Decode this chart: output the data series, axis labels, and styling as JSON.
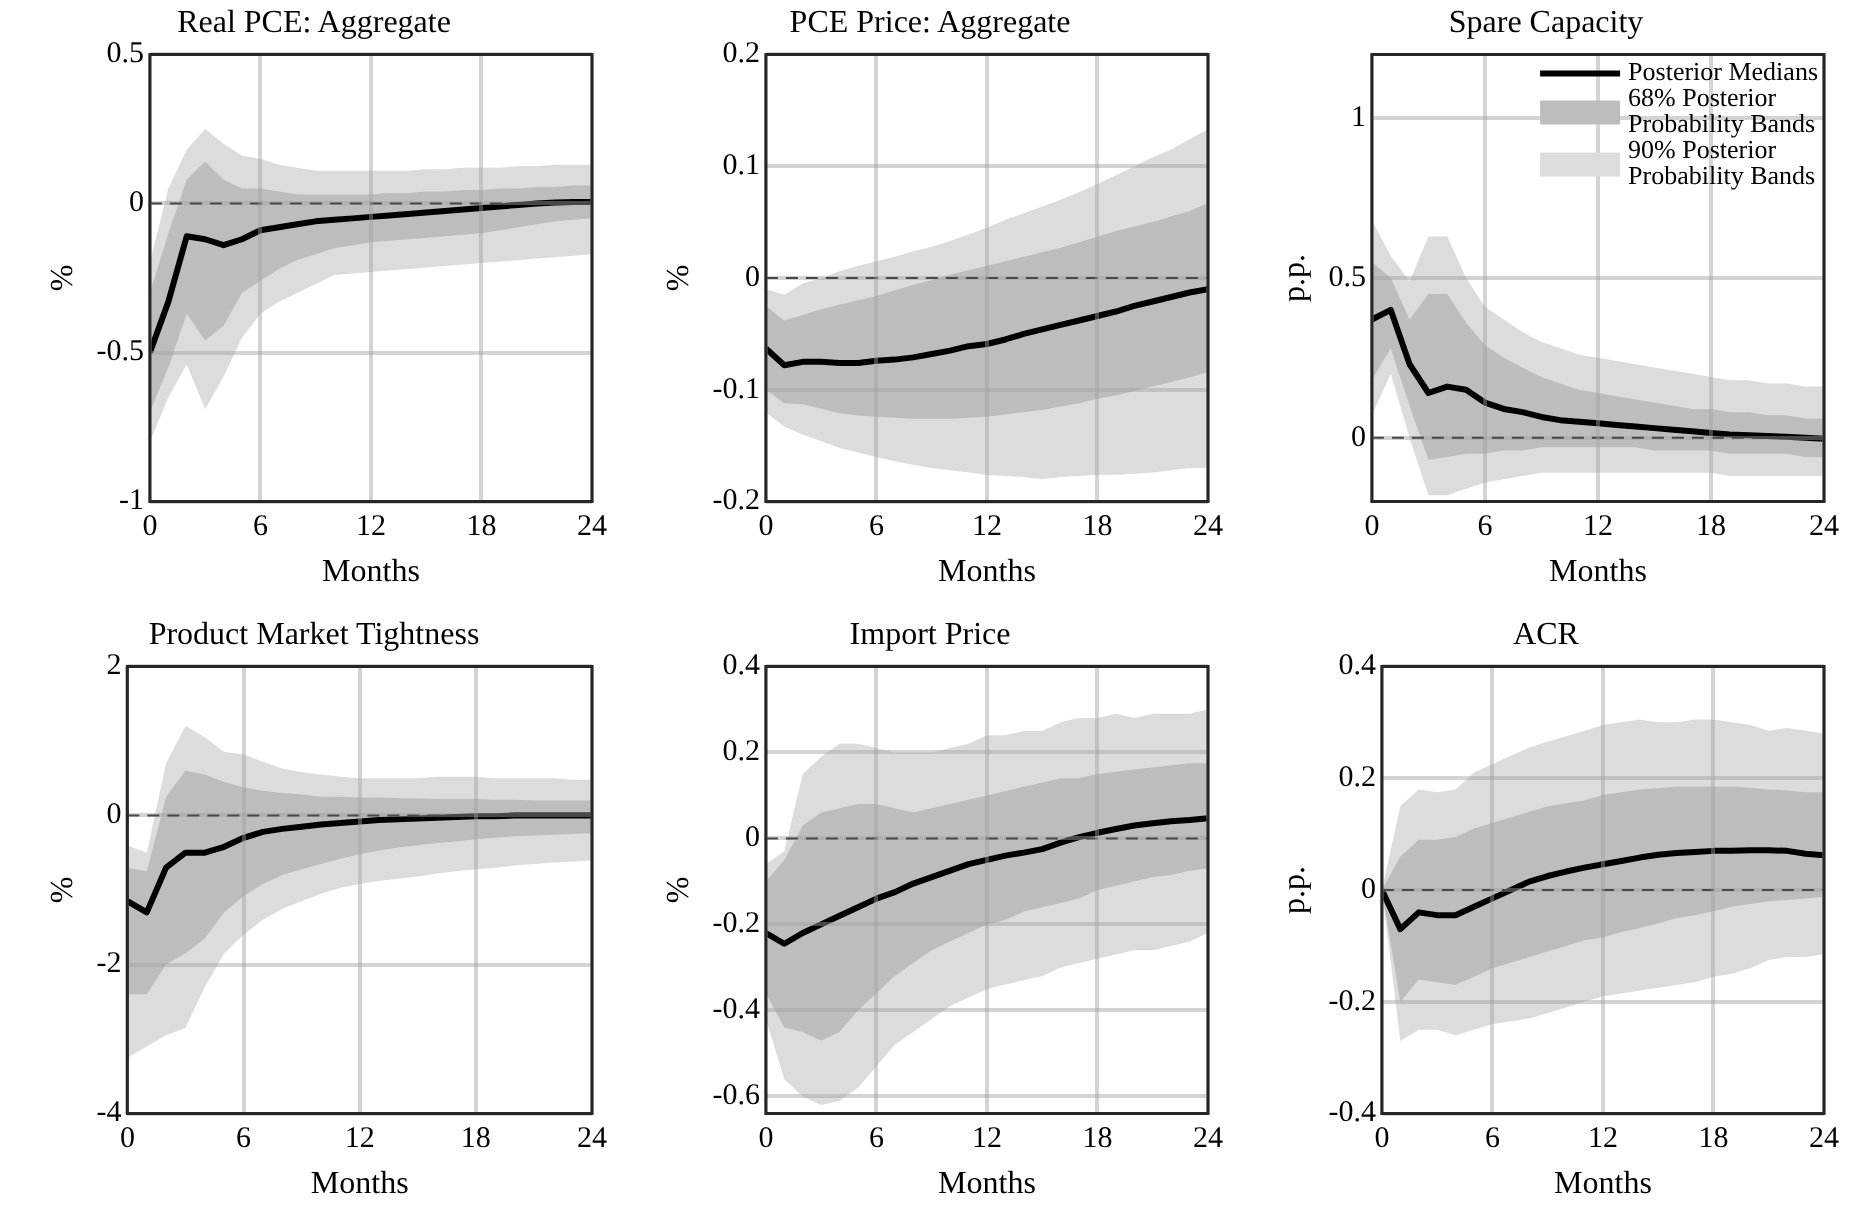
{
  "chart_data": [
    {
      "type": "line",
      "title": "Real PCE: Aggregate",
      "xlabel": "Months",
      "ylabel": "%",
      "x": [
        0,
        1,
        2,
        3,
        4,
        5,
        6,
        7,
        8,
        9,
        10,
        11,
        12,
        13,
        14,
        15,
        16,
        17,
        18,
        19,
        20,
        21,
        22,
        23,
        24
      ],
      "xlim": [
        0,
        24
      ],
      "xticks": [
        0,
        6,
        12,
        18,
        24
      ],
      "ylim": [
        -1,
        0.5
      ],
      "yticks": [
        -1,
        -0.5,
        0,
        0.5
      ],
      "grid": true,
      "ref_lines": [
        {
          "axis": "y",
          "value": 0,
          "line_style": "dashed",
          "color": "#000000"
        }
      ],
      "series": [
        {
          "type": "line",
          "color": "#dcdcdc",
          "values": [
            null,
            null,
            null,
            null,
            null,
            null,
            null,
            null,
            null,
            null,
            null,
            null,
            null,
            null,
            null,
            null,
            null,
            null,
            null,
            null,
            null,
            null,
            null,
            null,
            null
          ],
          "lower": [
            -0.8,
            -0.65,
            -0.54,
            -0.69,
            -0.58,
            -0.45,
            -0.37,
            -0.33,
            -0.3,
            -0.27,
            -0.24,
            -0.235,
            -0.23,
            -0.225,
            -0.22,
            -0.215,
            -0.21,
            -0.205,
            -0.2,
            -0.195,
            -0.19,
            -0.185,
            -0.18,
            -0.175,
            -0.17
          ],
          "upper": [
            -0.2,
            0.05,
            0.18,
            0.25,
            0.2,
            0.16,
            0.15,
            0.13,
            0.12,
            0.11,
            0.11,
            0.11,
            0.11,
            0.11,
            0.11,
            0.115,
            0.115,
            0.12,
            0.12,
            0.12,
            0.125,
            0.125,
            0.13,
            0.13,
            0.13
          ]
        },
        {
          "type": "line",
          "color": "#bdbdbd",
          "values": [
            null,
            null,
            null,
            null,
            null,
            null,
            null,
            null,
            null,
            null,
            null,
            null,
            null,
            null,
            null,
            null,
            null,
            null,
            null,
            null,
            null,
            null,
            null,
            null,
            null
          ],
          "lower": [
            -0.7,
            -0.55,
            -0.37,
            -0.46,
            -0.41,
            -0.3,
            -0.26,
            -0.22,
            -0.19,
            -0.17,
            -0.15,
            -0.14,
            -0.13,
            -0.125,
            -0.12,
            -0.115,
            -0.11,
            -0.105,
            -0.1,
            -0.09,
            -0.08,
            -0.07,
            -0.06,
            -0.055,
            -0.05
          ],
          "upper": [
            -0.3,
            -0.1,
            0.08,
            0.14,
            0.08,
            0.05,
            0.05,
            0.04,
            0.03,
            0.03,
            0.03,
            0.03,
            0.03,
            0.035,
            0.035,
            0.04,
            0.04,
            0.045,
            0.045,
            0.05,
            0.05,
            0.055,
            0.055,
            0.06,
            0.06
          ]
        },
        {
          "type": "line",
          "color": "#000000",
          "values": [
            -0.5,
            -0.33,
            -0.11,
            -0.12,
            -0.14,
            -0.12,
            -0.09,
            -0.08,
            -0.07,
            -0.06,
            -0.055,
            -0.05,
            -0.045,
            -0.04,
            -0.035,
            -0.03,
            -0.025,
            -0.02,
            -0.015,
            -0.01,
            -0.005,
            0,
            0.003,
            0.005,
            0.005
          ]
        }
      ]
    },
    {
      "type": "line",
      "title": "PCE Price: Aggregate",
      "xlabel": "Months",
      "ylabel": "%",
      "x": [
        0,
        1,
        2,
        3,
        4,
        5,
        6,
        7,
        8,
        9,
        10,
        11,
        12,
        13,
        14,
        15,
        16,
        17,
        18,
        19,
        20,
        21,
        22,
        23,
        24
      ],
      "xlim": [
        0,
        24
      ],
      "xticks": [
        0,
        6,
        12,
        18,
        24
      ],
      "ylim": [
        -0.2,
        0.2
      ],
      "yticks": [
        -0.2,
        -0.1,
        0,
        0.1,
        0.2
      ],
      "grid": true,
      "ref_lines": [
        {
          "axis": "y",
          "value": 0,
          "line_style": "dashed",
          "color": "#000000"
        }
      ],
      "series": [
        {
          "type": "line",
          "color": "#dcdcdc",
          "values": [
            null,
            null,
            null,
            null,
            null,
            null,
            null,
            null,
            null,
            null,
            null,
            null,
            null,
            null,
            null,
            null,
            null,
            null,
            null,
            null,
            null,
            null,
            null,
            null,
            null
          ],
          "lower": [
            -0.12,
            -0.133,
            -0.14,
            -0.146,
            -0.152,
            -0.156,
            -0.16,
            -0.164,
            -0.167,
            -0.17,
            -0.172,
            -0.174,
            -0.176,
            -0.177,
            -0.178,
            -0.18,
            -0.178,
            -0.177,
            -0.176,
            -0.176,
            -0.175,
            -0.174,
            -0.172,
            -0.17,
            -0.17
          ],
          "upper": [
            -0.01,
            -0.015,
            -0.005,
            0,
            0.006,
            0.011,
            0.015,
            0.019,
            0.024,
            0.028,
            0.033,
            0.039,
            0.045,
            0.052,
            0.058,
            0.064,
            0.07,
            0.077,
            0.084,
            0.092,
            0.1,
            0.108,
            0.115,
            0.124,
            0.133
          ]
        },
        {
          "type": "line",
          "color": "#bdbdbd",
          "values": [
            null,
            null,
            null,
            null,
            null,
            null,
            null,
            null,
            null,
            null,
            null,
            null,
            null,
            null,
            null,
            null,
            null,
            null,
            null,
            null,
            null,
            null,
            null,
            null,
            null
          ],
          "lower": [
            -0.1,
            -0.112,
            -0.113,
            -0.117,
            -0.121,
            -0.123,
            -0.124,
            -0.125,
            -0.126,
            -0.126,
            -0.126,
            -0.125,
            -0.124,
            -0.122,
            -0.12,
            -0.118,
            -0.115,
            -0.112,
            -0.108,
            -0.105,
            -0.101,
            -0.097,
            -0.093,
            -0.089,
            -0.084
          ],
          "upper": [
            -0.025,
            -0.038,
            -0.033,
            -0.028,
            -0.024,
            -0.02,
            -0.016,
            -0.011,
            -0.006,
            -0.002,
            0.003,
            0.007,
            0.011,
            0.015,
            0.019,
            0.023,
            0.027,
            0.032,
            0.037,
            0.042,
            0.046,
            0.05,
            0.055,
            0.06,
            0.067
          ]
        },
        {
          "type": "line",
          "color": "#000000",
          "values": [
            -0.063,
            -0.078,
            -0.075,
            -0.075,
            -0.076,
            -0.076,
            -0.074,
            -0.073,
            -0.071,
            -0.068,
            -0.065,
            -0.061,
            -0.059,
            -0.055,
            -0.05,
            -0.046,
            -0.042,
            -0.038,
            -0.034,
            -0.03,
            -0.025,
            -0.021,
            -0.017,
            -0.013,
            -0.01
          ]
        }
      ]
    },
    {
      "type": "line",
      "title": "Spare Capacity",
      "xlabel": "Months",
      "ylabel": "p.p.",
      "x": [
        0,
        1,
        2,
        3,
        4,
        5,
        6,
        7,
        8,
        9,
        10,
        11,
        12,
        13,
        14,
        15,
        16,
        17,
        18,
        19,
        20,
        21,
        22,
        23,
        24
      ],
      "xlim": [
        0,
        24
      ],
      "xticks": [
        0,
        6,
        12,
        18,
        24
      ],
      "ylim": [
        -0.2,
        1.2
      ],
      "yticks": [
        0,
        0.5,
        1
      ],
      "grid": true,
      "legend": "top right",
      "ref_lines": [
        {
          "axis": "y",
          "value": 0,
          "line_style": "dashed",
          "color": "#000000"
        }
      ],
      "series": [
        {
          "type": "line",
          "name": "Posterior Medians",
          "color": "#000000",
          "values": [
            0.37,
            0.4,
            0.23,
            0.14,
            0.16,
            0.15,
            0.11,
            0.09,
            0.08,
            0.065,
            0.055,
            0.05,
            0.045,
            0.04,
            0.035,
            0.03,
            0.025,
            0.02,
            0.015,
            0.01,
            0.008,
            0.005,
            0.003,
            0,
            -0.003
          ]
        },
        {
          "type": "line",
          "name": "68% Posterior Probability Bands",
          "color": "#bdbdbd",
          "values": [
            null,
            null,
            null,
            null,
            null,
            null,
            null,
            null,
            null,
            null,
            null,
            null,
            null,
            null,
            null,
            null,
            null,
            null,
            null,
            null,
            null,
            null,
            null,
            null,
            null
          ],
          "lower": [
            0.18,
            0.28,
            0.1,
            -0.07,
            -0.06,
            -0.05,
            -0.05,
            -0.04,
            -0.04,
            -0.03,
            -0.03,
            -0.03,
            -0.03,
            -0.03,
            -0.03,
            -0.04,
            -0.04,
            -0.04,
            -0.04,
            -0.05,
            -0.05,
            -0.05,
            -0.05,
            -0.06,
            -0.06
          ],
          "upper": [
            0.55,
            0.5,
            0.37,
            0.45,
            0.45,
            0.36,
            0.29,
            0.25,
            0.22,
            0.19,
            0.17,
            0.15,
            0.14,
            0.13,
            0.12,
            0.11,
            0.1,
            0.09,
            0.09,
            0.08,
            0.08,
            0.07,
            0.07,
            0.06,
            0.06
          ]
        },
        {
          "type": "line",
          "name": "90% Posterior Probability Bands",
          "color": "#dcdcdc",
          "values": [
            null,
            null,
            null,
            null,
            null,
            null,
            null,
            null,
            null,
            null,
            null,
            null,
            null,
            null,
            null,
            null,
            null,
            null,
            null,
            null,
            null,
            null,
            null,
            null,
            null
          ],
          "lower": [
            0.07,
            0.2,
            0,
            -0.18,
            -0.18,
            -0.16,
            -0.14,
            -0.13,
            -0.12,
            -0.11,
            -0.11,
            -0.11,
            -0.11,
            -0.11,
            -0.11,
            -0.11,
            -0.11,
            -0.11,
            -0.11,
            -0.12,
            -0.12,
            -0.12,
            -0.12,
            -0.12,
            -0.12
          ],
          "upper": [
            0.68,
            0.57,
            0.49,
            0.63,
            0.63,
            0.5,
            0.41,
            0.37,
            0.33,
            0.3,
            0.28,
            0.26,
            0.25,
            0.24,
            0.23,
            0.22,
            0.21,
            0.2,
            0.19,
            0.18,
            0.18,
            0.17,
            0.17,
            0.16,
            0.16
          ]
        }
      ]
    },
    {
      "type": "line",
      "title": "Product Market Tightness",
      "xlabel": "Months",
      "ylabel": "%",
      "x": [
        0,
        1,
        2,
        3,
        4,
        5,
        6,
        7,
        8,
        9,
        10,
        11,
        12,
        13,
        14,
        15,
        16,
        17,
        18,
        19,
        20,
        21,
        22,
        23,
        24
      ],
      "xlim": [
        0,
        24
      ],
      "xticks": [
        0,
        6,
        12,
        18,
        24
      ],
      "ylim": [
        -4,
        2
      ],
      "yticks": [
        -4,
        -2,
        0,
        2
      ],
      "grid": true,
      "ref_lines": [
        {
          "axis": "y",
          "value": 0,
          "line_style": "dashed",
          "color": "#000000"
        }
      ],
      "series": [
        {
          "type": "line",
          "color": "#dcdcdc",
          "values": [
            null,
            null,
            null,
            null,
            null,
            null,
            null,
            null,
            null,
            null,
            null,
            null,
            null,
            null,
            null,
            null,
            null,
            null,
            null,
            null,
            null,
            null,
            null,
            null,
            null
          ],
          "lower": [
            -3.25,
            -3.1,
            -2.95,
            -2.85,
            -2.3,
            -1.85,
            -1.6,
            -1.4,
            -1.25,
            -1.15,
            -1.05,
            -0.97,
            -0.92,
            -0.88,
            -0.85,
            -0.82,
            -0.78,
            -0.75,
            -0.72,
            -0.7,
            -0.67,
            -0.65,
            -0.63,
            -0.62,
            -0.6
          ],
          "upper": [
            -0.4,
            -0.5,
            0.7,
            1.2,
            1.05,
            0.85,
            0.82,
            0.72,
            0.63,
            0.58,
            0.55,
            0.52,
            0.5,
            0.5,
            0.5,
            0.5,
            0.52,
            0.52,
            0.52,
            0.5,
            0.5,
            0.5,
            0.5,
            0.48,
            0.48
          ]
        },
        {
          "type": "line",
          "color": "#bdbdbd",
          "values": [
            null,
            null,
            null,
            null,
            null,
            null,
            null,
            null,
            null,
            null,
            null,
            null,
            null,
            null,
            null,
            null,
            null,
            null,
            null,
            null,
            null,
            null,
            null,
            null,
            null
          ],
          "lower": [
            -2.4,
            -2.4,
            -2.0,
            -1.85,
            -1.65,
            -1.3,
            -1.08,
            -0.92,
            -0.8,
            -0.72,
            -0.65,
            -0.58,
            -0.52,
            -0.47,
            -0.43,
            -0.4,
            -0.37,
            -0.35,
            -0.32,
            -0.3,
            -0.28,
            -0.27,
            -0.26,
            -0.25,
            -0.24
          ],
          "upper": [
            -0.7,
            -0.75,
            0.25,
            0.6,
            0.55,
            0.45,
            0.38,
            0.33,
            0.3,
            0.28,
            0.25,
            0.25,
            0.24,
            0.24,
            0.23,
            0.23,
            0.22,
            0.22,
            0.22,
            0.21,
            0.21,
            0.2,
            0.2,
            0.2,
            0.2
          ]
        },
        {
          "type": "line",
          "color": "#000000",
          "values": [
            -1.15,
            -1.3,
            -0.7,
            -0.5,
            -0.5,
            -0.42,
            -0.3,
            -0.22,
            -0.18,
            -0.15,
            -0.12,
            -0.1,
            -0.08,
            -0.06,
            -0.05,
            -0.04,
            -0.03,
            -0.02,
            -0.01,
            -0.01,
            0,
            0,
            0,
            0,
            0
          ]
        }
      ]
    },
    {
      "type": "line",
      "title": "Import Price",
      "xlabel": "Months",
      "ylabel": "%",
      "x": [
        0,
        1,
        2,
        3,
        4,
        5,
        6,
        7,
        8,
        9,
        10,
        11,
        12,
        13,
        14,
        15,
        16,
        17,
        18,
        19,
        20,
        21,
        22,
        23,
        24
      ],
      "xlim": [
        0,
        24
      ],
      "xticks": [
        0,
        6,
        12,
        18,
        24
      ],
      "ylim": [
        -0.64,
        0.4
      ],
      "yticks": [
        -0.6,
        -0.4,
        -0.2,
        0,
        0.2,
        0.4
      ],
      "grid": true,
      "ref_lines": [
        {
          "axis": "y",
          "value": 0,
          "line_style": "dashed",
          "color": "#000000"
        }
      ],
      "series": [
        {
          "type": "line",
          "color": "#dcdcdc",
          "values": [
            null,
            null,
            null,
            null,
            null,
            null,
            null,
            null,
            null,
            null,
            null,
            null,
            null,
            null,
            null,
            null,
            null,
            null,
            null,
            null,
            null,
            null,
            null,
            null,
            null
          ],
          "lower": [
            -0.42,
            -0.56,
            -0.6,
            -0.62,
            -0.61,
            -0.58,
            -0.53,
            -0.48,
            -0.45,
            -0.42,
            -0.39,
            -0.37,
            -0.35,
            -0.34,
            -0.33,
            -0.32,
            -0.3,
            -0.29,
            -0.28,
            -0.27,
            -0.26,
            -0.26,
            -0.25,
            -0.24,
            -0.22
          ],
          "upper": [
            -0.06,
            -0.03,
            0.15,
            0.19,
            0.22,
            0.22,
            0.21,
            0.2,
            0.2,
            0.2,
            0.21,
            0.22,
            0.24,
            0.24,
            0.25,
            0.25,
            0.27,
            0.28,
            0.28,
            0.29,
            0.28,
            0.29,
            0.29,
            0.29,
            0.3
          ]
        },
        {
          "type": "line",
          "color": "#bdbdbd",
          "values": [
            null,
            null,
            null,
            null,
            null,
            null,
            null,
            null,
            null,
            null,
            null,
            null,
            null,
            null,
            null,
            null,
            null,
            null,
            null,
            null,
            null,
            null,
            null,
            null,
            null
          ],
          "lower": [
            -0.36,
            -0.44,
            -0.45,
            -0.47,
            -0.45,
            -0.4,
            -0.36,
            -0.32,
            -0.29,
            -0.26,
            -0.24,
            -0.22,
            -0.2,
            -0.19,
            -0.17,
            -0.16,
            -0.15,
            -0.14,
            -0.12,
            -0.11,
            -0.1,
            -0.09,
            -0.085,
            -0.075,
            -0.07
          ],
          "upper": [
            -0.1,
            -0.05,
            0.03,
            0.06,
            0.07,
            0.08,
            0.08,
            0.07,
            0.06,
            0.07,
            0.08,
            0.09,
            0.1,
            0.11,
            0.12,
            0.13,
            0.14,
            0.14,
            0.15,
            0.155,
            0.16,
            0.165,
            0.17,
            0.175,
            0.175
          ]
        },
        {
          "type": "line",
          "color": "#000000",
          "values": [
            -0.22,
            -0.245,
            -0.22,
            -0.2,
            -0.18,
            -0.16,
            -0.14,
            -0.125,
            -0.105,
            -0.09,
            -0.075,
            -0.06,
            -0.05,
            -0.04,
            -0.033,
            -0.025,
            -0.01,
            0.003,
            0.013,
            0.022,
            0.03,
            0.035,
            0.04,
            0.043,
            0.047
          ]
        }
      ]
    },
    {
      "type": "line",
      "title": "ACR",
      "xlabel": "Months",
      "ylabel": "p.p.",
      "x": [
        0,
        1,
        2,
        3,
        4,
        5,
        6,
        7,
        8,
        9,
        10,
        11,
        12,
        13,
        14,
        15,
        16,
        17,
        18,
        19,
        20,
        21,
        22,
        23,
        24
      ],
      "xlim": [
        0,
        24
      ],
      "xticks": [
        0,
        6,
        12,
        18,
        24
      ],
      "ylim": [
        -0.4,
        0.4
      ],
      "yticks": [
        -0.4,
        -0.2,
        0,
        0.2,
        0.4
      ],
      "grid": true,
      "ref_lines": [
        {
          "axis": "y",
          "value": 0,
          "line_style": "dashed",
          "color": "#000000"
        }
      ],
      "series": [
        {
          "type": "line",
          "color": "#dcdcdc",
          "values": [
            null,
            null,
            null,
            null,
            null,
            null,
            null,
            null,
            null,
            null,
            null,
            null,
            null,
            null,
            null,
            null,
            null,
            null,
            null,
            null,
            null,
            null,
            null,
            null,
            null
          ],
          "lower": [
            0,
            -0.27,
            -0.25,
            -0.25,
            -0.26,
            -0.25,
            -0.24,
            -0.235,
            -0.23,
            -0.22,
            -0.21,
            -0.2,
            -0.19,
            -0.185,
            -0.18,
            -0.175,
            -0.17,
            -0.165,
            -0.155,
            -0.15,
            -0.14,
            -0.125,
            -0.12,
            -0.12,
            -0.115
          ],
          "upper": [
            0,
            0.15,
            0.18,
            0.175,
            0.18,
            0.21,
            0.225,
            0.24,
            0.255,
            0.265,
            0.275,
            0.285,
            0.295,
            0.3,
            0.305,
            0.3,
            0.3,
            0.305,
            0.305,
            0.3,
            0.295,
            0.285,
            0.29,
            0.285,
            0.28
          ]
        },
        {
          "type": "line",
          "color": "#bdbdbd",
          "values": [
            null,
            null,
            null,
            null,
            null,
            null,
            null,
            null,
            null,
            null,
            null,
            null,
            null,
            null,
            null,
            null,
            null,
            null,
            null,
            null,
            null,
            null,
            null,
            null,
            null
          ],
          "lower": [
            0,
            -0.2,
            -0.16,
            -0.165,
            -0.17,
            -0.155,
            -0.14,
            -0.13,
            -0.12,
            -0.11,
            -0.1,
            -0.09,
            -0.085,
            -0.075,
            -0.068,
            -0.06,
            -0.05,
            -0.045,
            -0.038,
            -0.03,
            -0.025,
            -0.02,
            -0.018,
            -0.015,
            -0.012
          ],
          "upper": [
            0,
            0.06,
            0.09,
            0.09,
            0.095,
            0.11,
            0.12,
            0.13,
            0.14,
            0.15,
            0.155,
            0.16,
            0.17,
            0.175,
            0.18,
            0.182,
            0.185,
            0.185,
            0.185,
            0.185,
            0.183,
            0.18,
            0.178,
            0.175,
            0.175
          ]
        },
        {
          "type": "line",
          "color": "#000000",
          "values": [
            0,
            -0.07,
            -0.04,
            -0.045,
            -0.045,
            -0.03,
            -0.015,
            0,
            0.015,
            0.025,
            0.033,
            0.04,
            0.046,
            0.052,
            0.058,
            0.063,
            0.066,
            0.068,
            0.07,
            0.07,
            0.071,
            0.071,
            0.07,
            0.065,
            0.062
          ]
        }
      ]
    }
  ]
}
